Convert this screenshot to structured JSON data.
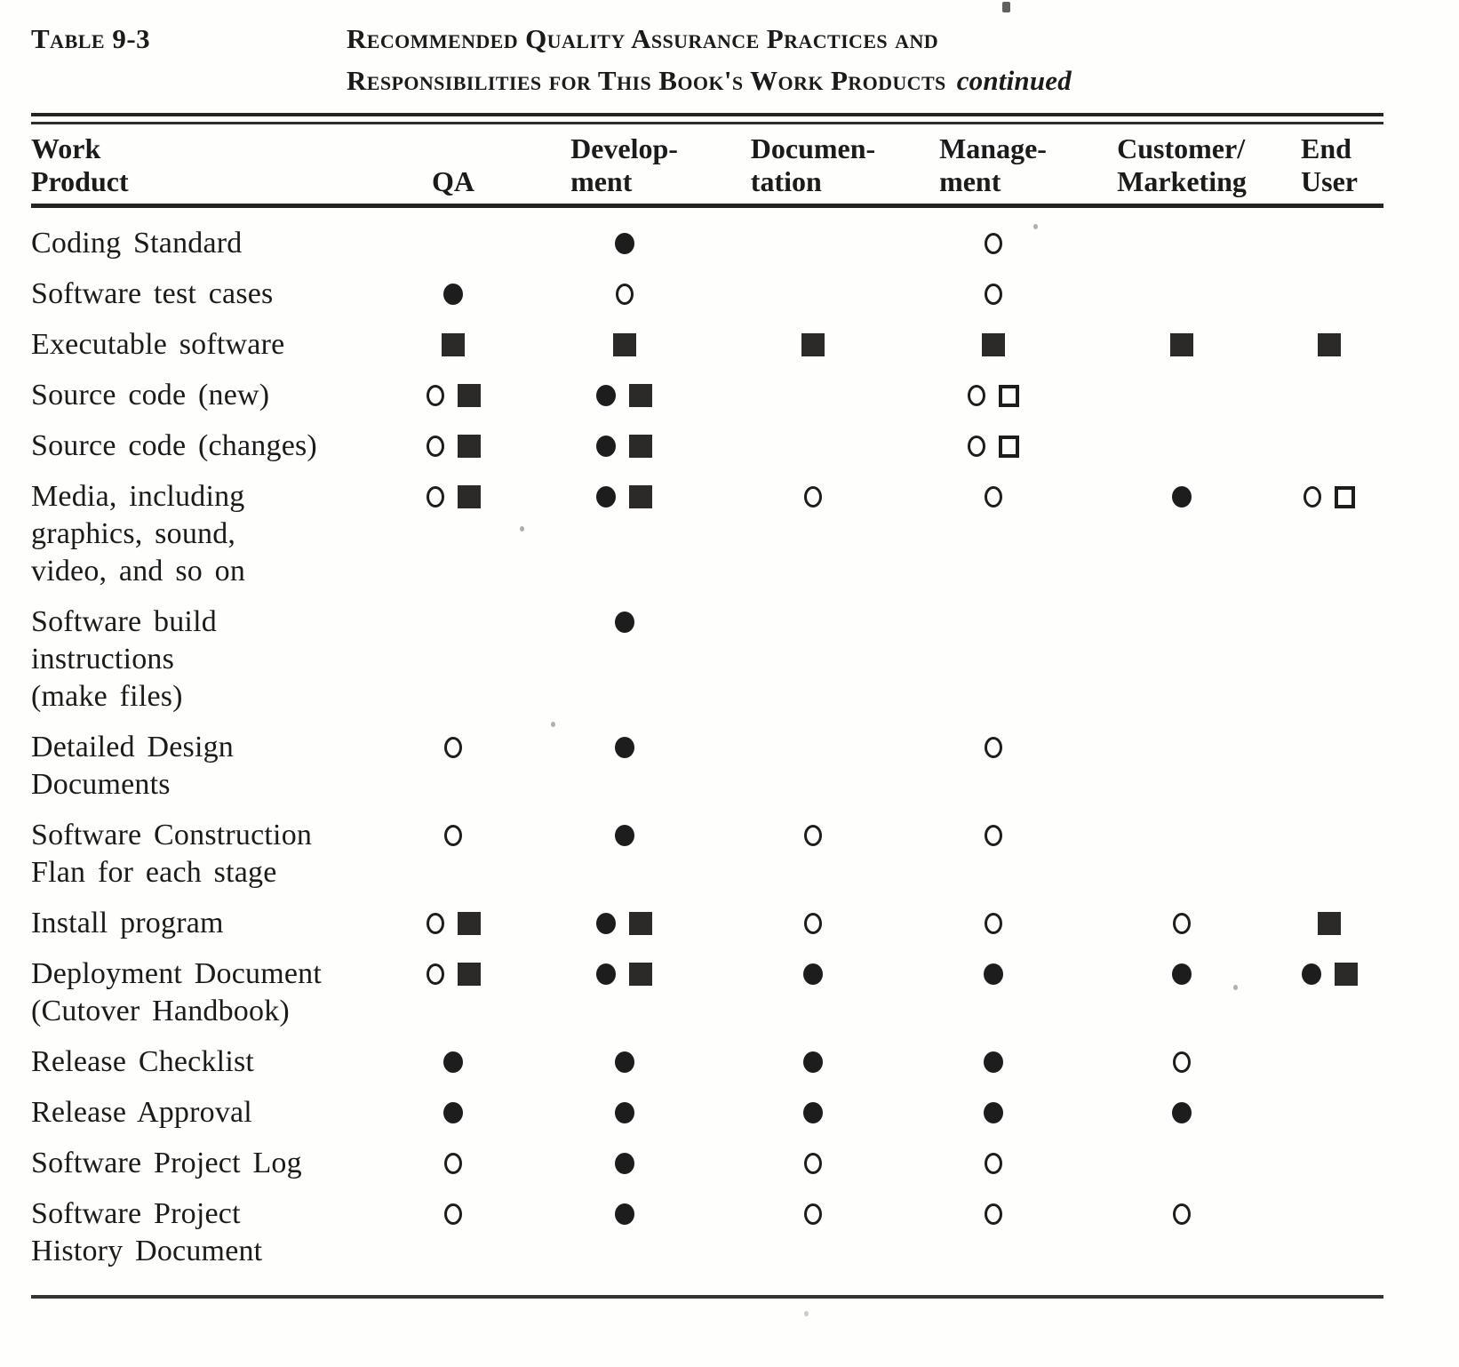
{
  "document": {
    "table_label": "Table 9-3",
    "title_line1": "Recommended Quality Assurance Practices and",
    "title_line2": "Responsibilities for This Book's Work Products",
    "title_continued": "continued"
  },
  "symbols": {
    "filled-circle": "●",
    "open-circle": "○",
    "filled-square": "■",
    "open-square": "□"
  },
  "table": {
    "column_keys": [
      "qa",
      "development",
      "documentation",
      "management",
      "customer_marketing",
      "end_user"
    ],
    "headers": {
      "work_product": [
        "Work",
        "Product"
      ],
      "qa": [
        "QA"
      ],
      "development": [
        "Develop-",
        "ment"
      ],
      "documentation": [
        "Documen-",
        "tation"
      ],
      "management": [
        "Manage-",
        "ment"
      ],
      "customer_marketing": [
        "Customer/",
        "Marketing"
      ],
      "end_user": [
        "End",
        "User"
      ]
    },
    "rows": [
      {
        "label_lines": [
          "Coding Standard"
        ],
        "cells": {
          "qa": [],
          "development": [
            "filled-circle"
          ],
          "documentation": [],
          "management": [
            "open-circle"
          ],
          "customer_marketing": [],
          "end_user": []
        }
      },
      {
        "label_lines": [
          "Software test cases"
        ],
        "cells": {
          "qa": [
            "filled-circle"
          ],
          "development": [
            "open-circle"
          ],
          "documentation": [],
          "management": [
            "open-circle"
          ],
          "customer_marketing": [],
          "end_user": []
        }
      },
      {
        "label_lines": [
          "Executable software"
        ],
        "cells": {
          "qa": [
            "filled-square"
          ],
          "development": [
            "filled-square"
          ],
          "documentation": [
            "filled-square"
          ],
          "management": [
            "filled-square"
          ],
          "customer_marketing": [
            "filled-square"
          ],
          "end_user": [
            "filled-square"
          ]
        }
      },
      {
        "label_lines": [
          "Source code (new)"
        ],
        "cells": {
          "qa": [
            "open-circle",
            "filled-square"
          ],
          "development": [
            "filled-circle",
            "filled-square"
          ],
          "documentation": [],
          "management": [
            "open-circle",
            "open-square"
          ],
          "customer_marketing": [],
          "end_user": []
        }
      },
      {
        "label_lines": [
          "Source code (changes)"
        ],
        "cells": {
          "qa": [
            "open-circle",
            "filled-square"
          ],
          "development": [
            "filled-circle",
            "filled-square"
          ],
          "documentation": [],
          "management": [
            "open-circle",
            "open-square"
          ],
          "customer_marketing": [],
          "end_user": []
        }
      },
      {
        "label_lines": [
          "Media, including",
          "graphics, sound,",
          "video, and so on"
        ],
        "cells": {
          "qa": [
            "open-circle",
            "filled-square"
          ],
          "development": [
            "filled-circle",
            "filled-square"
          ],
          "documentation": [
            "open-circle"
          ],
          "management": [
            "open-circle"
          ],
          "customer_marketing": [
            "filled-circle"
          ],
          "end_user": [
            "open-circle",
            "open-square"
          ]
        }
      },
      {
        "label_lines": [
          "Software build",
          "instructions",
          "(make files)"
        ],
        "cells": {
          "qa": [],
          "development": [
            "filled-circle"
          ],
          "documentation": [],
          "management": [],
          "customer_marketing": [],
          "end_user": []
        }
      },
      {
        "label_lines": [
          "Detailed Design",
          "Documents"
        ],
        "cells": {
          "qa": [
            "open-circle"
          ],
          "development": [
            "filled-circle"
          ],
          "documentation": [],
          "management": [
            "open-circle"
          ],
          "customer_marketing": [],
          "end_user": []
        }
      },
      {
        "label_lines": [
          "Software Construction",
          "Flan for each stage"
        ],
        "cells": {
          "qa": [
            "open-circle"
          ],
          "development": [
            "filled-circle"
          ],
          "documentation": [
            "open-circle"
          ],
          "management": [
            "open-circle"
          ],
          "customer_marketing": [],
          "end_user": []
        }
      },
      {
        "label_lines": [
          "Install program"
        ],
        "cells": {
          "qa": [
            "open-circle",
            "filled-square"
          ],
          "development": [
            "filled-circle",
            "filled-square"
          ],
          "documentation": [
            "open-circle"
          ],
          "management": [
            "open-circle"
          ],
          "customer_marketing": [
            "open-circle"
          ],
          "end_user": [
            "filled-square"
          ]
        }
      },
      {
        "label_lines": [
          "Deployment Document",
          "(Cutover Handbook)"
        ],
        "cells": {
          "qa": [
            "open-circle",
            "filled-square"
          ],
          "development": [
            "filled-circle",
            "filled-square"
          ],
          "documentation": [
            "filled-circle"
          ],
          "management": [
            "filled-circle"
          ],
          "customer_marketing": [
            "filled-circle"
          ],
          "end_user": [
            "filled-circle",
            "filled-square"
          ]
        }
      },
      {
        "label_lines": [
          "Release Checklist"
        ],
        "cells": {
          "qa": [
            "filled-circle"
          ],
          "development": [
            "filled-circle"
          ],
          "documentation": [
            "filled-circle"
          ],
          "management": [
            "filled-circle"
          ],
          "customer_marketing": [
            "open-circle"
          ],
          "end_user": []
        }
      },
      {
        "label_lines": [
          "Release Approval"
        ],
        "cells": {
          "qa": [
            "filled-circle"
          ],
          "development": [
            "filled-circle"
          ],
          "documentation": [
            "filled-circle"
          ],
          "management": [
            "filled-circle"
          ],
          "customer_marketing": [
            "filled-circle"
          ],
          "end_user": []
        }
      },
      {
        "label_lines": [
          "Software Project Log"
        ],
        "cells": {
          "qa": [
            "open-circle"
          ],
          "development": [
            "filled-circle"
          ],
          "documentation": [
            "open-circle"
          ],
          "management": [
            "open-circle"
          ],
          "customer_marketing": [],
          "end_user": []
        }
      },
      {
        "label_lines": [
          "Software Project",
          "History Document"
        ],
        "cells": {
          "qa": [
            "open-circle"
          ],
          "development": [
            "filled-circle"
          ],
          "documentation": [
            "open-circle"
          ],
          "management": [
            "open-circle"
          ],
          "customer_marketing": [
            "open-circle"
          ],
          "end_user": []
        }
      }
    ]
  },
  "colors": {
    "background": "#fefefd",
    "ink": "#1b1b1b",
    "rule": "#242424"
  }
}
